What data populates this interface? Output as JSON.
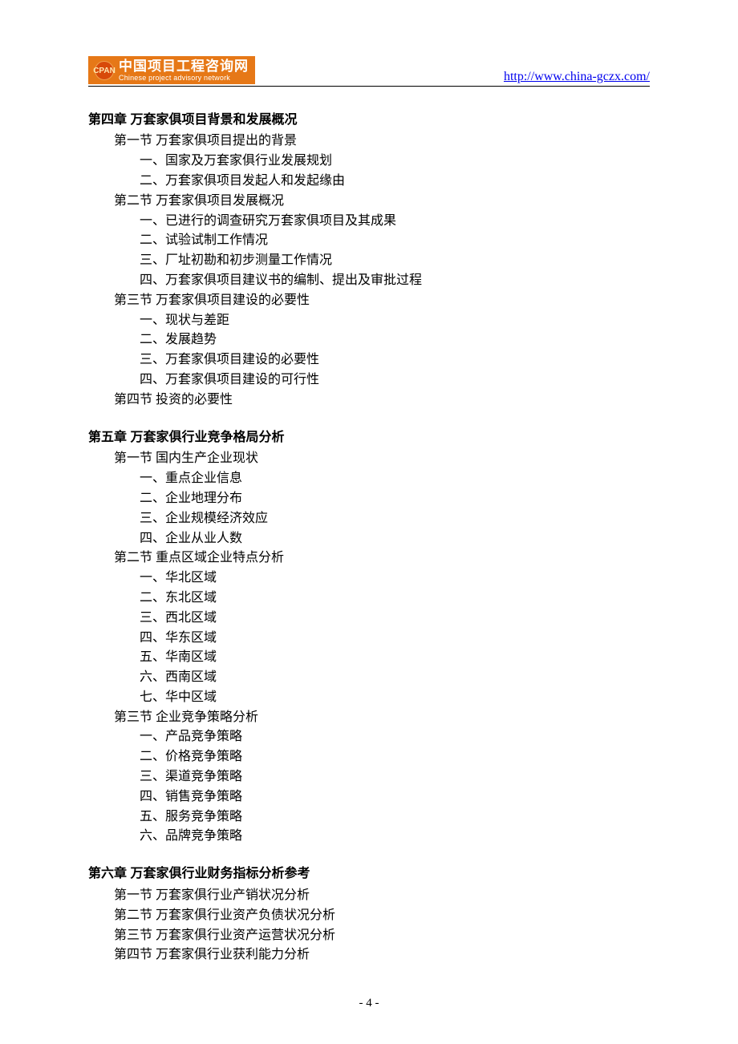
{
  "header": {
    "logo_cn": "中国项目工程咨询网",
    "logo_en": "Chinese project advisory network",
    "logo_badge": "CPAN",
    "url": "http://www.china-gczx.com/",
    "logo_bg": "#e67817",
    "logo_text_color": "#ffffff",
    "url_color": "#0000ee"
  },
  "page_number": "- 4 -",
  "typography": {
    "body_font": "SimSun",
    "heading_font": "SimHei",
    "body_size_pt": 12,
    "heading_size_pt": 12,
    "line_height": 1.55,
    "text_color": "#000000",
    "background_color": "#ffffff"
  },
  "toc": [
    {
      "title": "第四章  万套家俱项目背景和发展概况",
      "sections": [
        {
          "label": "第一节  万套家俱项目提出的背景",
          "items": [
            "一、国家及万套家俱行业发展规划",
            "二、万套家俱项目发起人和发起缘由"
          ]
        },
        {
          "label": "第二节  万套家俱项目发展概况",
          "items": [
            "一、已进行的调查研究万套家俱项目及其成果",
            "二、试验试制工作情况",
            "三、厂址初勘和初步测量工作情况",
            "四、万套家俱项目建议书的编制、提出及审批过程"
          ]
        },
        {
          "label": "第三节  万套家俱项目建设的必要性",
          "items": [
            "一、现状与差距",
            "二、发展趋势",
            "三、万套家俱项目建设的必要性",
            "四、万套家俱项目建设的可行性"
          ]
        },
        {
          "label": "第四节   投资的必要性",
          "items": []
        }
      ]
    },
    {
      "title": "第五章  万套家俱行业竞争格局分析",
      "sections": [
        {
          "label": "第一节   国内生产企业现状",
          "items": [
            "一、重点企业信息",
            "二、企业地理分布",
            "三、企业规模经济效应",
            "四、企业从业人数"
          ]
        },
        {
          "label": "第二节   重点区域企业特点分析",
          "items": [
            "一、华北区域",
            "二、东北区域",
            "三、西北区域",
            "四、华东区域",
            "五、华南区域",
            "六、西南区域",
            "七、华中区域"
          ]
        },
        {
          "label": "第三节   企业竞争策略分析",
          "items": [
            "一、产品竞争策略",
            "二、价格竞争策略",
            "三、渠道竞争策略",
            "四、销售竞争策略",
            "五、服务竞争策略",
            "六、品牌竞争策略"
          ]
        }
      ]
    },
    {
      "title": "第六章  万套家俱行业财务指标分析参考",
      "sections": [
        {
          "label": "第一节  万套家俱行业产销状况分析",
          "items": []
        },
        {
          "label": "第二节  万套家俱行业资产负债状况分析",
          "items": []
        },
        {
          "label": "第三节  万套家俱行业资产运营状况分析",
          "items": []
        },
        {
          "label": "第四节  万套家俱行业获利能力分析",
          "items": []
        }
      ]
    }
  ]
}
